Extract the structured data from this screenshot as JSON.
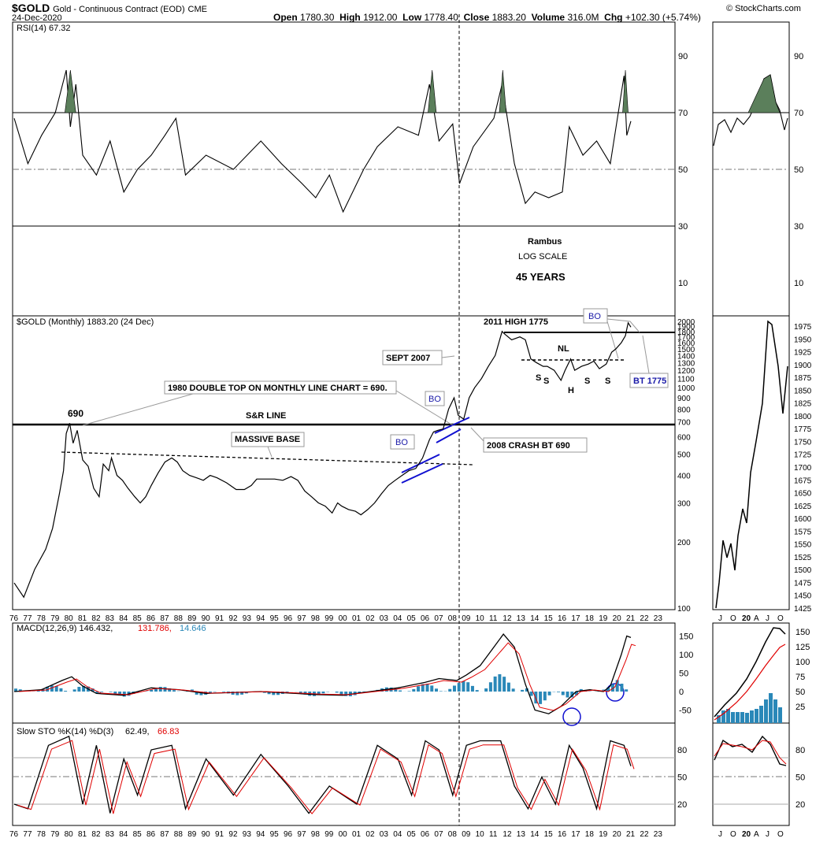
{
  "header": {
    "symbol": "$GOLD",
    "desc": "Gold - Continuous Contract (EOD)",
    "exchange": "CME",
    "date": "24-Dec-2020",
    "open_lbl": "Open",
    "open": "1780.30",
    "high_lbl": "High",
    "high": "1912.00",
    "low_lbl": "Low",
    "low": "1778.40",
    "close_lbl": "Close",
    "close": "1883.20",
    "vol_lbl": "Volume",
    "volume": "316.0M",
    "chg_lbl": "Chg",
    "chg": "+102.30 (+5.74%)",
    "watermark": "© StockCharts.com"
  },
  "panels": {
    "rsi_label": "RSI(14) 67.32",
    "price_label": "$GOLD (Monthly) 1883.20 (24 Dec)",
    "macd_label_a": "MACD(12,26,9) 146.432,",
    "macd_label_b": "131.786,",
    "macd_label_c": "14.646",
    "sto_label_a": "Slow STO %K(14) %D(3)",
    "sto_label_b": "62.49,",
    "sto_label_c": "66.83"
  },
  "annotations": {
    "rambus": "Rambus",
    "log_scale": "LOG SCALE",
    "years": "45 YEARS",
    "high_2011": "2011 HIGH 1775",
    "nl": "NL",
    "bo1": "BO",
    "bo2": "BO",
    "bo3": "BO",
    "sept_2007": "SEPT 2007",
    "double_top": "1980 DOUBLE TOP ON MONTHLY LINE CHART = 690.",
    "peak_690": "690",
    "sr_line": "S&R LINE",
    "massive_base": "MASSIVE BASE",
    "crash_2008": "2008 CRASH BT 690",
    "bt_1775": "BT 1775",
    "s1": "S",
    "s2": "S",
    "h": "H",
    "s3": "S",
    "s4": "S"
  },
  "axes": {
    "years": [
      "76",
      "77",
      "78",
      "79",
      "80",
      "81",
      "82",
      "83",
      "84",
      "85",
      "86",
      "87",
      "88",
      "89",
      "90",
      "91",
      "92",
      "93",
      "94",
      "95",
      "96",
      "97",
      "98",
      "99",
      "00",
      "01",
      "02",
      "03",
      "04",
      "05",
      "06",
      "07",
      "08",
      "09",
      "10",
      "11",
      "12",
      "13",
      "14",
      "15",
      "16",
      "17",
      "18",
      "19",
      "20",
      "21",
      "22",
      "23"
    ],
    "rsi_ticks": [
      "90",
      "70",
      "50",
      "30",
      "10"
    ],
    "price_ticks": [
      "2000",
      "1900",
      "1800",
      "1700",
      "1600",
      "1500",
      "1400",
      "1300",
      "1200",
      "1100",
      "1000",
      "900",
      "800",
      "700",
      "600",
      "500",
      "400",
      "300",
      "200",
      "100"
    ],
    "macd_ticks": [
      "150",
      "100",
      "50",
      "0",
      "-50"
    ],
    "sto_ticks": [
      "80",
      "50",
      "20"
    ],
    "right_price_ticks": [
      "1975",
      "1950",
      "1925",
      "1900",
      "1875",
      "1850",
      "1825",
      "1800",
      "1775",
      "1750",
      "1725",
      "1700",
      "1675",
      "1650",
      "1625",
      "1600",
      "1575",
      "1550",
      "1525",
      "1500",
      "1475",
      "1450",
      "1425"
    ],
    "right_macd_ticks": [
      "150",
      "125",
      "100",
      "75",
      "50",
      "25"
    ],
    "right_rsi_ticks": [
      "90",
      "70",
      "50",
      "30",
      "10"
    ],
    "right_sto_ticks": [
      "80",
      "50",
      "20"
    ],
    "right_months": [
      "J",
      "O",
      "20",
      "A",
      "J",
      "O"
    ]
  },
  "colors": {
    "price": "#000000",
    "signal": "#e00000",
    "hist": "#2a88b8",
    "rsi_fill": "#5b7f5b",
    "bo_line": "#1010d0",
    "bo_text": "#1a1aa8"
  },
  "chart_data": [
    {
      "type": "line",
      "name": "price",
      "scale": "log",
      "ylim": [
        100,
        2000
      ],
      "x": [
        1976,
        1976.7,
        1977.5,
        1978.3,
        1978.8,
        1979.3,
        1979.6,
        1979.8,
        1980.05,
        1980.3,
        1980.6,
        1981,
        1981.4,
        1981.8,
        1982.2,
        1982.5,
        1982.9,
        1983.1,
        1983.5,
        1983.9,
        1984.3,
        1984.8,
        1985.2,
        1985.6,
        1986,
        1986.5,
        1987,
        1987.5,
        1987.9,
        1988.3,
        1988.8,
        1989.3,
        1989.8,
        1990.3,
        1990.8,
        1991.5,
        1992.2,
        1992.8,
        1993.3,
        1993.7,
        1994.2,
        1995,
        1995.6,
        1996.2,
        1996.7,
        1997.2,
        1997.7,
        1998.2,
        1998.7,
        1999.2,
        1999.6,
        1999.9,
        2000.4,
        2000.9,
        2001.3,
        2001.8,
        2002.3,
        2002.8,
        2003.3,
        2003.8,
        2004.3,
        2004.8,
        2005.3,
        2005.8,
        2006.3,
        2006.6,
        2006.9,
        2007.3,
        2007.7,
        2008.1,
        2008.4,
        2008.8,
        2009.2,
        2009.6,
        2010.1,
        2010.6,
        2011.1,
        2011.6,
        2011.8,
        2012.3,
        2012.9,
        2013.3,
        2013.7,
        2014.1,
        2014.6,
        2014.9,
        2015.4,
        2015.9,
        2016.2,
        2016.6,
        2016.9,
        2017.4,
        2017.9,
        2018.3,
        2018.7,
        2019.2,
        2019.6,
        2019.9,
        2020.3,
        2020.6,
        2020.8,
        2021.0
      ],
      "y": [
        130,
        112,
        150,
        185,
        230,
        330,
        420,
        620,
        690,
        560,
        640,
        470,
        440,
        350,
        320,
        450,
        420,
        480,
        400,
        380,
        350,
        320,
        300,
        320,
        360,
        410,
        460,
        480,
        460,
        420,
        400,
        390,
        380,
        400,
        390,
        370,
        345,
        345,
        360,
        385,
        385,
        385,
        380,
        395,
        380,
        340,
        320,
        300,
        290,
        270,
        300,
        290,
        280,
        275,
        265,
        280,
        300,
        330,
        360,
        380,
        400,
        420,
        430,
        480,
        580,
        630,
        640,
        650,
        800,
        900,
        750,
        720,
        900,
        1000,
        1100,
        1250,
        1400,
        1800,
        1750,
        1650,
        1700,
        1650,
        1350,
        1300,
        1250,
        1250,
        1200,
        1080,
        1200,
        1350,
        1200,
        1250,
        1280,
        1320,
        1220,
        1280,
        1450,
        1500,
        1600,
        1720,
        1970,
        1883
      ]
    },
    {
      "type": "line",
      "name": "rsi",
      "ylim": [
        0,
        100
      ],
      "x": [
        1976,
        1977,
        1978,
        1979,
        1979.8,
        1980.1,
        1980.5,
        1981,
        1982,
        1983,
        1984,
        1985,
        1986,
        1987,
        1987.8,
        1988.5,
        1990,
        1992,
        1994,
        1995.5,
        1997,
        1998,
        1999,
        2000,
        2001.5,
        2002.5,
        2004,
        2005.5,
        2006.3,
        2007,
        2008,
        2008.5,
        2009.5,
        2011,
        2011.6,
        2012.5,
        2013.3,
        2014,
        2015,
        2016,
        2016.5,
        2017.5,
        2018.5,
        2019.5,
        2020.5,
        2020.7,
        2021
      ],
      "y": [
        68,
        52,
        62,
        70,
        85,
        65,
        80,
        55,
        48,
        60,
        42,
        50,
        55,
        62,
        68,
        48,
        55,
        50,
        60,
        52,
        45,
        40,
        48,
        35,
        50,
        58,
        65,
        62,
        80,
        60,
        66,
        45,
        58,
        68,
        80,
        52,
        38,
        42,
        40,
        42,
        65,
        55,
        60,
        52,
        83,
        62,
        67
      ]
    },
    {
      "type": "line",
      "name": "macd",
      "ylim": [
        -70,
        170
      ],
      "x": [
        1976,
        1978,
        1979.5,
        1980.2,
        1981,
        1982,
        1984,
        1986,
        1988,
        1990,
        1994,
        1998,
        2000,
        2002,
        2004,
        2006,
        2007,
        2008.3,
        2009,
        2010,
        2011,
        2011.7,
        2012.5,
        2013.3,
        2014,
        2015,
        2015.9,
        2017,
        2018,
        2019,
        2019.5,
        2020.3,
        2020.7,
        2021
      ],
      "y": [
        0,
        5,
        30,
        40,
        15,
        -5,
        -10,
        10,
        5,
        -5,
        0,
        -8,
        -10,
        0,
        10,
        25,
        35,
        30,
        45,
        70,
        120,
        155,
        120,
        20,
        -50,
        -60,
        -40,
        0,
        5,
        0,
        15,
        100,
        150,
        146
      ]
    },
    {
      "type": "line",
      "name": "slow_sto",
      "ylim": [
        0,
        100
      ],
      "x": [
        1976,
        1977,
        1978.5,
        1980,
        1981,
        1982,
        1983,
        1984,
        1985,
        1986,
        1987.5,
        1988.5,
        1990,
        1992,
        1994,
        1996,
        1997.5,
        1999,
        2001,
        2002.5,
        2004,
        2005,
        2006,
        2007,
        2008,
        2009,
        2010,
        2011.5,
        2012.5,
        2013.5,
        2014.5,
        2015.5,
        2016.5,
        2017.5,
        2018.5,
        2019.5,
        2020.5,
        2021
      ],
      "y": [
        20,
        15,
        85,
        95,
        20,
        85,
        10,
        70,
        30,
        80,
        85,
        15,
        70,
        30,
        75,
        40,
        10,
        40,
        20,
        85,
        70,
        30,
        90,
        80,
        30,
        85,
        90,
        90,
        40,
        15,
        50,
        20,
        85,
        60,
        15,
        90,
        85,
        62
      ]
    }
  ]
}
